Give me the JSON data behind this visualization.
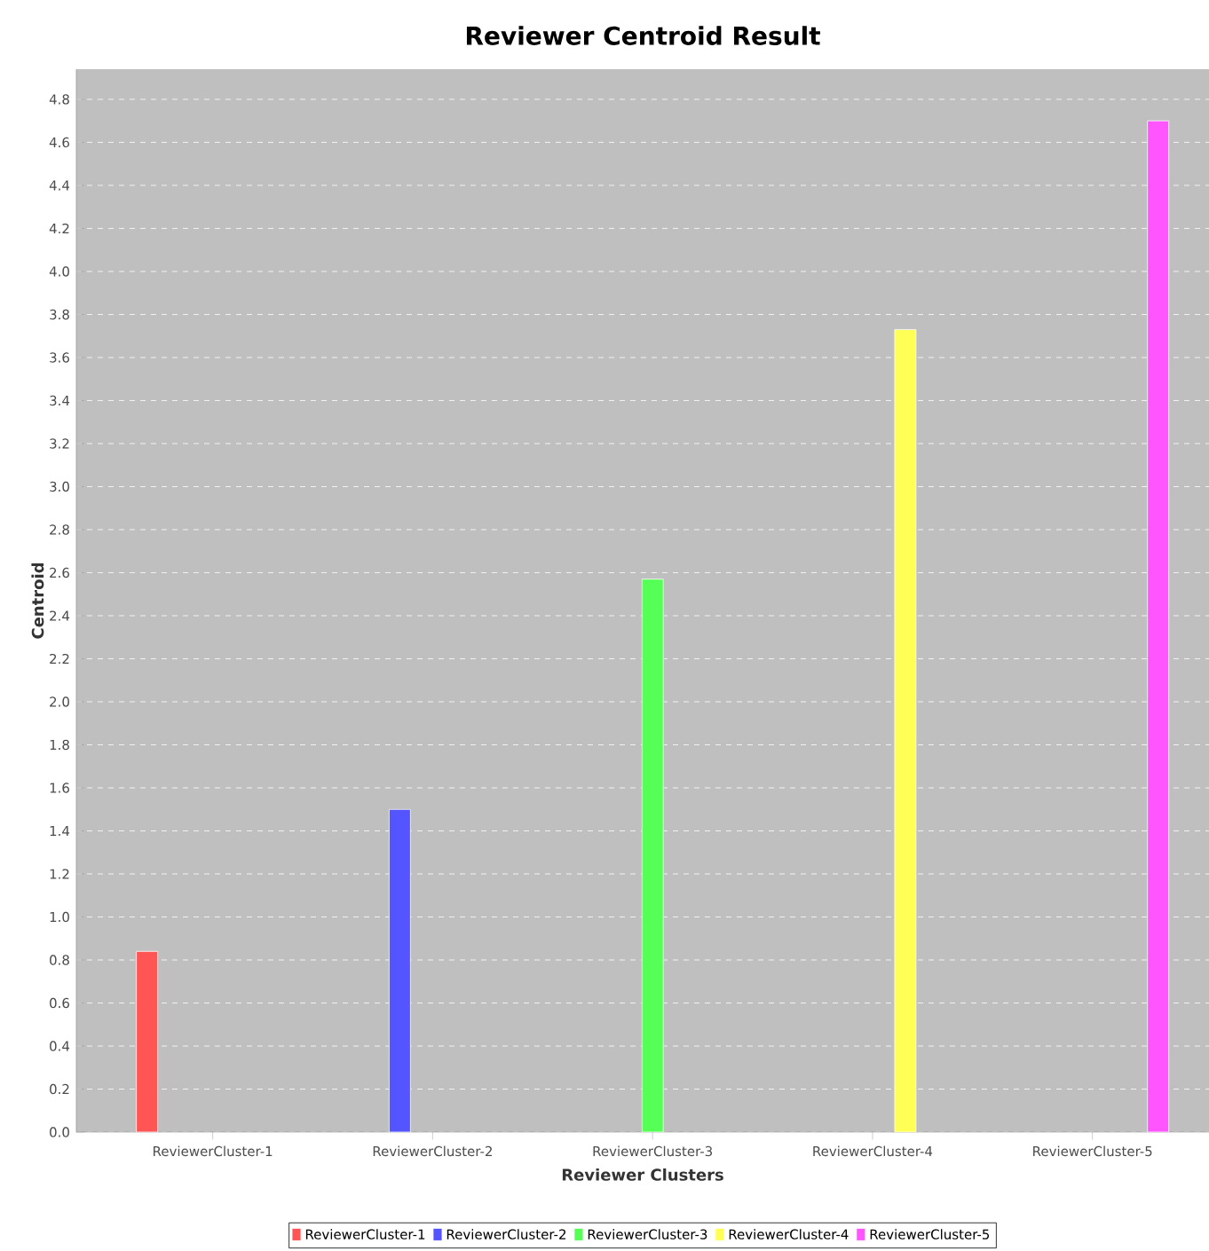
{
  "chart_data": {
    "type": "bar",
    "title": "Reviewer Centroid Result",
    "xlabel": "Reviewer Clusters",
    "ylabel": "Centroid",
    "categories": [
      "ReviewerCluster-1",
      "ReviewerCluster-2",
      "ReviewerCluster-3",
      "ReviewerCluster-4",
      "ReviewerCluster-5"
    ],
    "series": [
      {
        "name": "ReviewerCluster-1",
        "color": "#ff5555",
        "values": [
          0.84,
          null,
          null,
          null,
          null
        ]
      },
      {
        "name": "ReviewerCluster-2",
        "color": "#5555ff",
        "values": [
          null,
          1.5,
          null,
          null,
          null
        ]
      },
      {
        "name": "ReviewerCluster-3",
        "color": "#55ff55",
        "values": [
          null,
          null,
          2.57,
          null,
          null
        ]
      },
      {
        "name": "ReviewerCluster-4",
        "color": "#ffff55",
        "values": [
          null,
          null,
          null,
          3.73,
          null
        ]
      },
      {
        "name": "ReviewerCluster-5",
        "color": "#ff55ff",
        "values": [
          null,
          null,
          null,
          null,
          4.7
        ]
      }
    ],
    "ylim": [
      0,
      4.94
    ],
    "yticks": [
      {
        "value": 0,
        "label": "0.0"
      },
      0.2,
      0.4,
      0.6,
      0.8,
      {
        "value": 1,
        "label": "1.0"
      },
      1.2,
      1.4,
      1.6,
      1.8,
      {
        "value": 2,
        "label": "2.0"
      },
      2.2,
      2.4,
      2.6,
      2.8,
      {
        "value": 3,
        "label": "3.0"
      },
      3.2,
      3.4,
      3.6,
      3.8,
      {
        "value": 4,
        "label": "4.0"
      },
      4.2,
      4.4,
      4.6,
      4.8
    ],
    "grid": "y",
    "legend": "bottom"
  }
}
